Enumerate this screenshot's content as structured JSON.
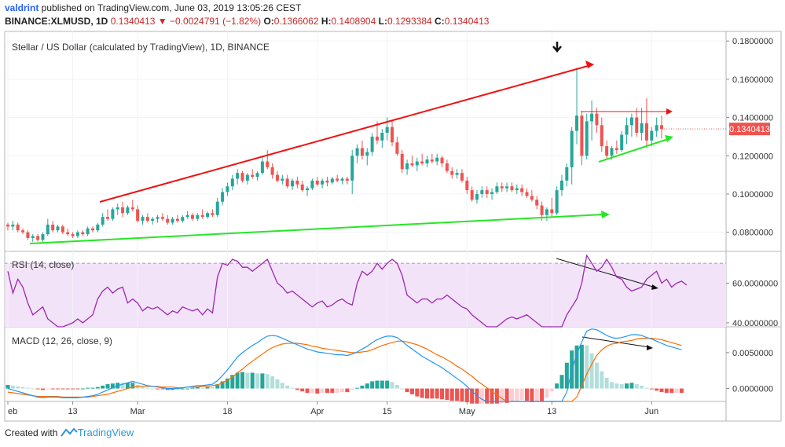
{
  "header": {
    "user": "valdrint",
    "published_text": " published on TradingView.com, June 03, 2019 13:05:26 CEST",
    "symbol": "BINANCE:XLMUSD, 1D",
    "last": "0.1340413",
    "change": "−0.0024791 (−1.82%)",
    "o_label": "O:",
    "o": "0.1366062",
    "h_label": "H:",
    "h": "0.1408904",
    "l_label": "L:",
    "l": "0.1293384",
    "c_label": "C:",
    "c": "0.1340413"
  },
  "footer": {
    "created_with": "Created with",
    "brand": "TradingView"
  },
  "colors": {
    "up": "#26a69a",
    "down": "#ef5350",
    "trend_red": "#f01010",
    "trend_green": "#27e627",
    "rsi_line": "#9c27b0",
    "rsi_band": "#f3e3f9",
    "macd_line": "#2196f3",
    "signal_line": "#ff6d00",
    "hist_up_strong": "#26a69a",
    "hist_up_weak": "#b2dfdb",
    "hist_down_strong": "#ef5350",
    "hist_down_weak": "#ffcdd2",
    "price_badge": "#ef5350"
  },
  "chart_data": [
    {
      "type": "candlestick",
      "title": "Stellar / US Dollar (calculated by TradingView), 1D, BINANCE",
      "x_tick_labels": [
        "eb",
        "13",
        "Mar",
        "18",
        "Apr",
        "15",
        "May",
        "13",
        "Jun"
      ],
      "y_tick_labels": [
        "0.1800000",
        "0.1600000",
        "0.1400000",
        "0.1200000",
        "0.1000000",
        "0.0800000"
      ],
      "ylim": [
        0.07,
        0.185
      ],
      "last_price_label": "0.1340413",
      "ohlc": [
        [
          0.084,
          0.085,
          0.081,
          0.083
        ],
        [
          0.083,
          0.086,
          0.081,
          0.084
        ],
        [
          0.084,
          0.085,
          0.08,
          0.081
        ],
        [
          0.081,
          0.082,
          0.079,
          0.08
        ],
        [
          0.08,
          0.081,
          0.076,
          0.077
        ],
        [
          0.077,
          0.079,
          0.075,
          0.078
        ],
        [
          0.078,
          0.079,
          0.075,
          0.076
        ],
        [
          0.076,
          0.08,
          0.075,
          0.079
        ],
        [
          0.079,
          0.087,
          0.078,
          0.084
        ],
        [
          0.084,
          0.086,
          0.08,
          0.081
        ],
        [
          0.081,
          0.084,
          0.08,
          0.083
        ],
        [
          0.083,
          0.084,
          0.079,
          0.08
        ],
        [
          0.08,
          0.082,
          0.078,
          0.079
        ],
        [
          0.079,
          0.08,
          0.077,
          0.078
        ],
        [
          0.078,
          0.081,
          0.077,
          0.08
        ],
        [
          0.08,
          0.081,
          0.078,
          0.079
        ],
        [
          0.079,
          0.083,
          0.078,
          0.082
        ],
        [
          0.082,
          0.083,
          0.08,
          0.081
        ],
        [
          0.081,
          0.085,
          0.08,
          0.084
        ],
        [
          0.084,
          0.09,
          0.083,
          0.088
        ],
        [
          0.088,
          0.092,
          0.086,
          0.087
        ],
        [
          0.087,
          0.093,
          0.086,
          0.092
        ],
        [
          0.092,
          0.095,
          0.089,
          0.093
        ],
        [
          0.093,
          0.096,
          0.088,
          0.09
        ],
        [
          0.09,
          0.094,
          0.089,
          0.093
        ],
        [
          0.093,
          0.097,
          0.091,
          0.092
        ],
        [
          0.092,
          0.094,
          0.085,
          0.086
        ],
        [
          0.086,
          0.089,
          0.084,
          0.088
        ],
        [
          0.088,
          0.09,
          0.085,
          0.086
        ],
        [
          0.086,
          0.088,
          0.084,
          0.087
        ],
        [
          0.087,
          0.089,
          0.085,
          0.088
        ],
        [
          0.088,
          0.09,
          0.086,
          0.087
        ],
        [
          0.087,
          0.089,
          0.084,
          0.085
        ],
        [
          0.085,
          0.088,
          0.084,
          0.087
        ],
        [
          0.087,
          0.089,
          0.085,
          0.086
        ],
        [
          0.086,
          0.089,
          0.085,
          0.088
        ],
        [
          0.088,
          0.091,
          0.087,
          0.089
        ],
        [
          0.089,
          0.09,
          0.086,
          0.087
        ],
        [
          0.087,
          0.09,
          0.086,
          0.089
        ],
        [
          0.089,
          0.092,
          0.087,
          0.088
        ],
        [
          0.088,
          0.091,
          0.087,
          0.09
        ],
        [
          0.09,
          0.092,
          0.088,
          0.089
        ],
        [
          0.089,
          0.098,
          0.088,
          0.096
        ],
        [
          0.096,
          0.103,
          0.094,
          0.101
        ],
        [
          0.101,
          0.106,
          0.099,
          0.104
        ],
        [
          0.104,
          0.11,
          0.102,
          0.108
        ],
        [
          0.108,
          0.113,
          0.105,
          0.111
        ],
        [
          0.111,
          0.112,
          0.106,
          0.107
        ],
        [
          0.107,
          0.111,
          0.105,
          0.11
        ],
        [
          0.11,
          0.113,
          0.108,
          0.109
        ],
        [
          0.109,
          0.112,
          0.107,
          0.111
        ],
        [
          0.111,
          0.12,
          0.11,
          0.117
        ],
        [
          0.117,
          0.123,
          0.113,
          0.114
        ],
        [
          0.114,
          0.116,
          0.108,
          0.11
        ],
        [
          0.11,
          0.112,
          0.106,
          0.107
        ],
        [
          0.107,
          0.11,
          0.105,
          0.108
        ],
        [
          0.108,
          0.11,
          0.103,
          0.104
        ],
        [
          0.104,
          0.108,
          0.102,
          0.107
        ],
        [
          0.107,
          0.109,
          0.103,
          0.105
        ],
        [
          0.105,
          0.107,
          0.101,
          0.102
        ],
        [
          0.102,
          0.104,
          0.099,
          0.103
        ],
        [
          0.103,
          0.108,
          0.102,
          0.107
        ],
        [
          0.107,
          0.109,
          0.104,
          0.105
        ],
        [
          0.105,
          0.108,
          0.103,
          0.107
        ],
        [
          0.107,
          0.109,
          0.104,
          0.106
        ],
        [
          0.106,
          0.109,
          0.105,
          0.108
        ],
        [
          0.108,
          0.11,
          0.106,
          0.107
        ],
        [
          0.107,
          0.109,
          0.105,
          0.108
        ],
        [
          0.108,
          0.109,
          0.105,
          0.107
        ],
        [
          0.107,
          0.123,
          0.1,
          0.12
        ],
        [
          0.12,
          0.126,
          0.116,
          0.124
        ],
        [
          0.124,
          0.128,
          0.118,
          0.12
        ],
        [
          0.12,
          0.124,
          0.115,
          0.122
        ],
        [
          0.122,
          0.132,
          0.12,
          0.13
        ],
        [
          0.13,
          0.138,
          0.126,
          0.128
        ],
        [
          0.128,
          0.134,
          0.124,
          0.132
        ],
        [
          0.132,
          0.14,
          0.128,
          0.135
        ],
        [
          0.135,
          0.138,
          0.125,
          0.127
        ],
        [
          0.127,
          0.13,
          0.12,
          0.121
        ],
        [
          0.121,
          0.123,
          0.111,
          0.113
        ],
        [
          0.113,
          0.118,
          0.11,
          0.116
        ],
        [
          0.116,
          0.12,
          0.114,
          0.115
        ],
        [
          0.115,
          0.119,
          0.112,
          0.117
        ],
        [
          0.117,
          0.121,
          0.115,
          0.116
        ],
        [
          0.116,
          0.12,
          0.114,
          0.118
        ],
        [
          0.118,
          0.121,
          0.116,
          0.117
        ],
        [
          0.117,
          0.121,
          0.115,
          0.119
        ],
        [
          0.119,
          0.12,
          0.114,
          0.116
        ],
        [
          0.116,
          0.118,
          0.111,
          0.112
        ],
        [
          0.112,
          0.114,
          0.108,
          0.11
        ],
        [
          0.11,
          0.113,
          0.108,
          0.111
        ],
        [
          0.111,
          0.113,
          0.106,
          0.107
        ],
        [
          0.107,
          0.109,
          0.1,
          0.102
        ],
        [
          0.102,
          0.104,
          0.096,
          0.097
        ],
        [
          0.097,
          0.102,
          0.095,
          0.1
        ],
        [
          0.1,
          0.104,
          0.098,
          0.102
        ],
        [
          0.102,
          0.104,
          0.098,
          0.1
        ],
        [
          0.1,
          0.103,
          0.097,
          0.101
        ],
        [
          0.101,
          0.106,
          0.1,
          0.104
        ],
        [
          0.104,
          0.106,
          0.101,
          0.103
        ],
        [
          0.103,
          0.106,
          0.101,
          0.104
        ],
        [
          0.104,
          0.106,
          0.101,
          0.102
        ],
        [
          0.102,
          0.105,
          0.1,
          0.103
        ],
        [
          0.103,
          0.105,
          0.099,
          0.101
        ],
        [
          0.101,
          0.103,
          0.098,
          0.099
        ],
        [
          0.099,
          0.102,
          0.096,
          0.097
        ],
        [
          0.097,
          0.099,
          0.092,
          0.094
        ],
        [
          0.094,
          0.096,
          0.086,
          0.089
        ],
        [
          0.089,
          0.093,
          0.086,
          0.092
        ],
        [
          0.092,
          0.098,
          0.088,
          0.09
        ],
        [
          0.09,
          0.104,
          0.089,
          0.102
        ],
        [
          0.102,
          0.11,
          0.099,
          0.107
        ],
        [
          0.107,
          0.116,
          0.104,
          0.114
        ],
        [
          0.114,
          0.135,
          0.105,
          0.133
        ],
        [
          0.133,
          0.166,
          0.126,
          0.141
        ],
        [
          0.141,
          0.143,
          0.115,
          0.12
        ],
        [
          0.12,
          0.142,
          0.118,
          0.138
        ],
        [
          0.138,
          0.149,
          0.128,
          0.142
        ],
        [
          0.142,
          0.145,
          0.132,
          0.136
        ],
        [
          0.136,
          0.14,
          0.122,
          0.125
        ],
        [
          0.125,
          0.128,
          0.118,
          0.12
        ],
        [
          0.12,
          0.125,
          0.118,
          0.124
        ],
        [
          0.124,
          0.128,
          0.121,
          0.123
        ],
        [
          0.123,
          0.133,
          0.122,
          0.131
        ],
        [
          0.131,
          0.14,
          0.126,
          0.136
        ],
        [
          0.136,
          0.142,
          0.13,
          0.14
        ],
        [
          0.14,
          0.145,
          0.13,
          0.132
        ],
        [
          0.132,
          0.145,
          0.128,
          0.137
        ],
        [
          0.137,
          0.15,
          0.124,
          0.128
        ],
        [
          0.128,
          0.135,
          0.125,
          0.133
        ],
        [
          0.133,
          0.14,
          0.13,
          0.136
        ],
        [
          0.136,
          0.141,
          0.129,
          0.134
        ]
      ]
    },
    {
      "type": "line",
      "title": "RSI (14, close)",
      "y_tick_labels": [
        "60.0000000",
        "40.0000000"
      ],
      "ylim": [
        38,
        76
      ],
      "band": [
        30,
        70
      ],
      "values": [
        66,
        55,
        62,
        58,
        50,
        44,
        46,
        48,
        42,
        40,
        38,
        38,
        39,
        40,
        42,
        40,
        42,
        44,
        52,
        56,
        58,
        55,
        57,
        58,
        50,
        52,
        50,
        46,
        48,
        47,
        48,
        46,
        44,
        46,
        45,
        48,
        47,
        46,
        47,
        44,
        47,
        45,
        63,
        70,
        69,
        72,
        71,
        68,
        68,
        66,
        68,
        70,
        72,
        66,
        60,
        58,
        55,
        56,
        54,
        52,
        50,
        48,
        50,
        51,
        48,
        49,
        51,
        52,
        50,
        49,
        60,
        66,
        64,
        66,
        70,
        67,
        70,
        72,
        70,
        64,
        54,
        52,
        50,
        52,
        52,
        50,
        52,
        52,
        54,
        52,
        50,
        48,
        47,
        44,
        42,
        40,
        38,
        36,
        38,
        40,
        42,
        43,
        42,
        43,
        44,
        42,
        40,
        38,
        36,
        34,
        38,
        38,
        44,
        48,
        52,
        60,
        74,
        70,
        66,
        68,
        72,
        68,
        63,
        62,
        58,
        56,
        57,
        58,
        62,
        64,
        66,
        60,
        62,
        58,
        60,
        61,
        59
      ]
    },
    {
      "type": "line",
      "title": "MACD (12, 26, close, 9)",
      "y_tick_labels": [
        "0.0050000",
        "0.0000000"
      ],
      "ylim": [
        -0.0018,
        0.0086
      ],
      "macd": [
        0.0,
        -0.0002,
        -0.0004,
        -0.0006,
        -0.0008,
        -0.001,
        -0.0012,
        -0.0013,
        -0.0012,
        -0.0012,
        -0.0012,
        -0.0013,
        -0.0013,
        -0.0013,
        -0.0013,
        -0.0012,
        -0.0011,
        -0.001,
        -0.0008,
        -0.0005,
        -0.0002,
        0.0001,
        0.0004,
        0.0006,
        0.0008,
        0.001,
        0.0008,
        0.0006,
        0.0004,
        0.0003,
        0.0002,
        0.0001,
        0.0,
        0.0,
        0.0,
        0.0001,
        0.0002,
        0.0003,
        0.0004,
        0.0004,
        0.0005,
        0.0006,
        0.0011,
        0.0018,
        0.0026,
        0.0035,
        0.0044,
        0.005,
        0.0055,
        0.006,
        0.0064,
        0.0069,
        0.0073,
        0.0074,
        0.0073,
        0.007,
        0.0067,
        0.0064,
        0.0061,
        0.0058,
        0.0055,
        0.0053,
        0.0051,
        0.005,
        0.0049,
        0.0048,
        0.0047,
        0.0047,
        0.0046,
        0.0048,
        0.0051,
        0.0055,
        0.0059,
        0.0064,
        0.0068,
        0.0071,
        0.0073,
        0.0073,
        0.0071,
        0.0066,
        0.006,
        0.0055,
        0.005,
        0.0045,
        0.0041,
        0.0037,
        0.0033,
        0.0029,
        0.0024,
        0.0019,
        0.0014,
        0.0009,
        0.0003,
        -0.0004,
        -0.001,
        -0.0015,
        -0.002,
        -0.0025,
        -0.003,
        -0.0034,
        -0.0038,
        -0.0041,
        -0.0044,
        -0.0047,
        -0.0052,
        -0.0058,
        -0.0062,
        -0.0066,
        -0.0065,
        -0.0058,
        -0.0046,
        -0.003,
        -0.0005,
        0.0025,
        0.0048,
        0.0065,
        0.008,
        0.0083,
        0.0082,
        0.0078,
        0.0074,
        0.0071,
        0.007,
        0.0071,
        0.0073,
        0.0075,
        0.0075,
        0.0074,
        0.0071,
        0.0069,
        0.0066,
        0.0063,
        0.006,
        0.0058,
        0.0056,
        0.0054
      ],
      "signal": [
        -0.0005,
        -0.0006,
        -0.0007,
        -0.0008,
        -0.0009,
        -0.001,
        -0.0011,
        -0.0011,
        -0.0011,
        -0.0011,
        -0.0011,
        -0.0012,
        -0.0012,
        -0.0012,
        -0.0012,
        -0.0012,
        -0.0012,
        -0.0011,
        -0.001,
        -0.0009,
        -0.0008,
        -0.0006,
        -0.0004,
        -0.0002,
        0.0,
        0.0002,
        0.0003,
        0.0003,
        0.0003,
        0.0003,
        0.0003,
        0.0002,
        0.0002,
        0.0002,
        0.0001,
        0.0001,
        0.0002,
        0.0002,
        0.0002,
        0.0003,
        0.0003,
        0.0004,
        0.0005,
        0.0008,
        0.0012,
        0.0016,
        0.0022,
        0.0027,
        0.0033,
        0.0038,
        0.0043,
        0.0048,
        0.0053,
        0.0057,
        0.006,
        0.0062,
        0.0063,
        0.0063,
        0.0063,
        0.0062,
        0.0061,
        0.0059,
        0.0058,
        0.0056,
        0.0055,
        0.0054,
        0.0053,
        0.0052,
        0.0051,
        0.005,
        0.005,
        0.0051,
        0.0052,
        0.0054,
        0.0057,
        0.006,
        0.0062,
        0.0064,
        0.0066,
        0.0066,
        0.0065,
        0.0063,
        0.0061,
        0.0058,
        0.0055,
        0.0051,
        0.0047,
        0.0044,
        0.004,
        0.0036,
        0.0031,
        0.0027,
        0.0022,
        0.0017,
        0.0011,
        0.0006,
        0.0001,
        -0.0004,
        -0.0009,
        -0.0014,
        -0.0018,
        -0.0023,
        -0.0027,
        -0.0031,
        -0.0035,
        -0.0039,
        -0.0044,
        -0.0048,
        -0.0052,
        -0.0054,
        -0.0053,
        -0.0049,
        -0.0041,
        -0.0028,
        -0.0012,
        0.0004,
        0.002,
        0.0034,
        0.0046,
        0.0054,
        0.0059,
        0.0062,
        0.0063,
        0.0065,
        0.0066,
        0.0067,
        0.0069,
        0.007,
        0.007,
        0.007,
        0.0069,
        0.0068,
        0.0066,
        0.0064,
        0.0062,
        0.006
      ]
    }
  ]
}
